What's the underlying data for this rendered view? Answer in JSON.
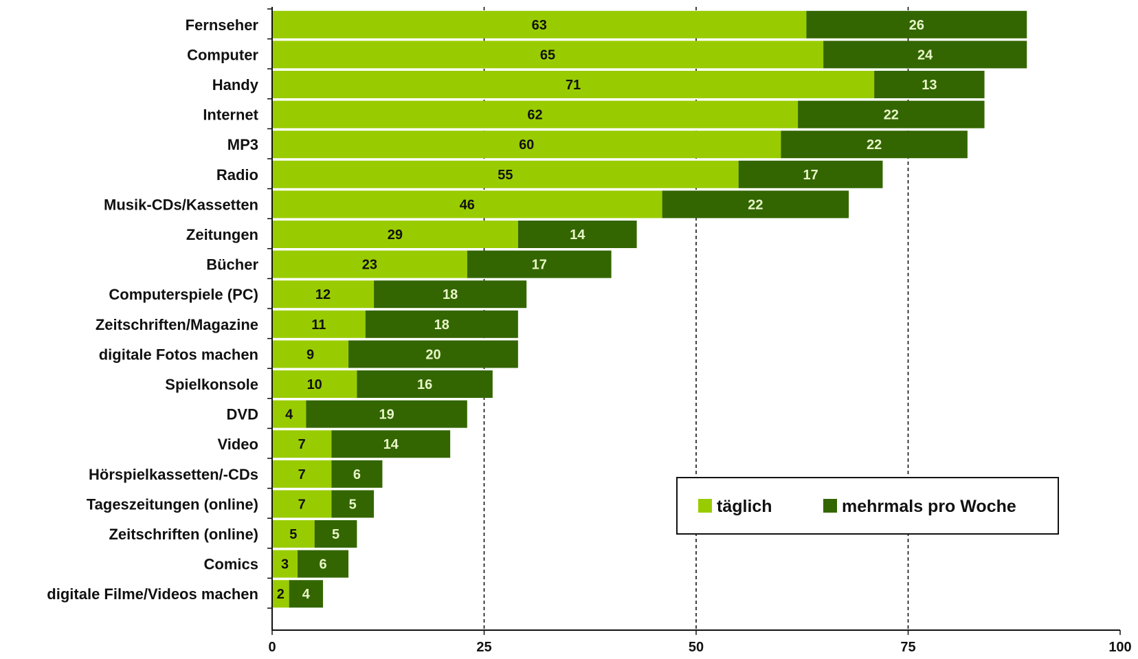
{
  "chart_data": {
    "type": "bar",
    "orientation": "horizontal",
    "stacked": true,
    "categories": [
      "Fernseher",
      "Computer",
      "Handy",
      "Internet",
      "MP3",
      "Radio",
      "Musik-CDs/Kassetten",
      "Zeitungen",
      "Bücher",
      "Computerspiele (PC)",
      "Zeitschriften/Magazine",
      "digitale Fotos machen",
      "Spielkonsole",
      "DVD",
      "Video",
      "Hörspielkassetten/-CDs",
      "Tageszeitungen (online)",
      "Zeitschriften (online)",
      "Comics",
      "digitale Filme/Videos machen"
    ],
    "series": [
      {
        "name": "täglich",
        "color": "#99cc00",
        "values": [
          63,
          65,
          71,
          62,
          60,
          55,
          46,
          29,
          23,
          12,
          11,
          9,
          10,
          4,
          7,
          7,
          7,
          5,
          3,
          2
        ]
      },
      {
        "name": "mehrmals pro Woche",
        "color": "#336600",
        "values": [
          26,
          24,
          13,
          22,
          22,
          17,
          22,
          14,
          17,
          18,
          18,
          20,
          16,
          19,
          14,
          6,
          5,
          5,
          6,
          4
        ]
      }
    ],
    "xlim": [
      0,
      100
    ],
    "xticks": [
      "0",
      "25",
      "50",
      "75",
      "100"
    ],
    "grid": "vertical dashed at 25, 50, 75",
    "legend": {
      "placement": "bottom-right"
    }
  }
}
